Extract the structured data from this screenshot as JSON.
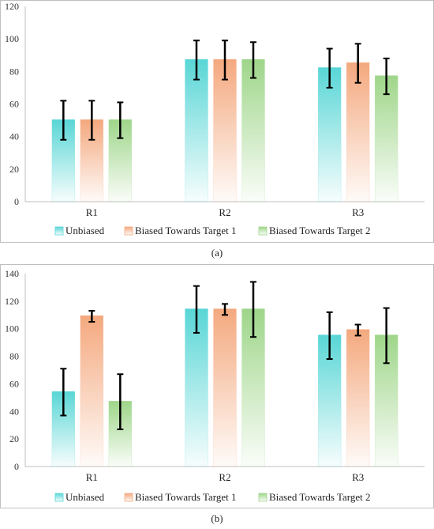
{
  "chart_data": [
    {
      "type": "bar",
      "caption": "(a)",
      "categories": [
        "R1",
        "R2",
        "R3"
      ],
      "ylim": [
        0,
        120
      ],
      "yticks": [
        0,
        20,
        40,
        60,
        80,
        100,
        120
      ],
      "grid": false,
      "legend_position": "bottom",
      "series": [
        {
          "name": "Unbiased",
          "values": [
            50,
            87,
            82
          ],
          "errors": [
            12,
            12,
            12
          ]
        },
        {
          "name": "Biased Towards Target 1",
          "values": [
            50,
            87,
            85
          ],
          "errors": [
            12,
            12,
            12
          ]
        },
        {
          "name": "Biased Towards Target 2",
          "values": [
            50,
            87,
            77
          ],
          "errors": [
            11,
            11,
            11
          ]
        }
      ]
    },
    {
      "type": "bar",
      "caption": "(b)",
      "categories": [
        "R1",
        "R2",
        "R3"
      ],
      "ylim": [
        0,
        140
      ],
      "yticks": [
        0,
        20,
        40,
        60,
        80,
        100,
        120,
        140
      ],
      "grid": false,
      "legend_position": "bottom",
      "series": [
        {
          "name": "Unbiased",
          "values": [
            54,
            114,
            95
          ],
          "errors": [
            17,
            17,
            17
          ]
        },
        {
          "name": "Biased Towards Target 1",
          "values": [
            109,
            114,
            99
          ],
          "errors": [
            4,
            4,
            4
          ]
        },
        {
          "name": "Biased Towards Target 2",
          "values": [
            47,
            114,
            95
          ],
          "errors": [
            20,
            20,
            20
          ]
        }
      ]
    }
  ],
  "colors": {
    "series": [
      "#5ad6d6",
      "#f4a97f",
      "#9fd68a"
    ],
    "axis": "#bfbfbf",
    "error_bar": "#000000"
  }
}
